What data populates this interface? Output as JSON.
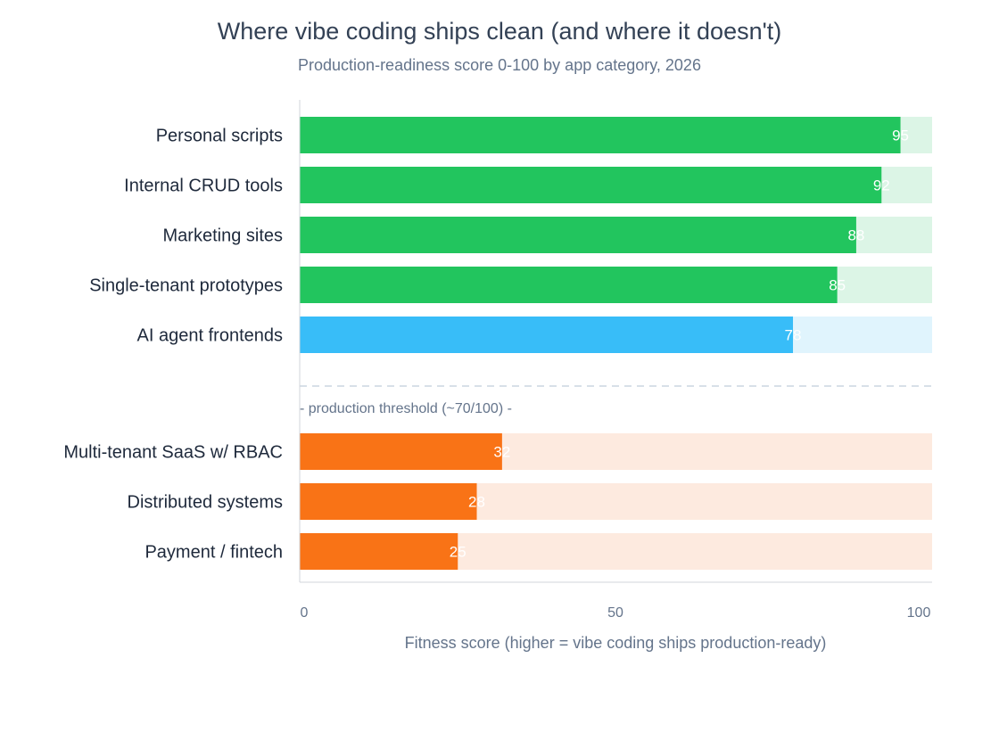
{
  "chart_data": {
    "type": "bar",
    "orientation": "horizontal",
    "title": "Where vibe coding ships clean (and where it doesn't)",
    "subtitle": "Production-readiness score 0-100 by app category, 2026",
    "xlabel": "Fitness score (higher = vibe coding ships production-ready)",
    "xlim": [
      0,
      100
    ],
    "xticks": [
      "0",
      "50",
      "100"
    ],
    "grid": false,
    "categories": [
      "Personal scripts",
      "Internal CRUD tools",
      "Marketing sites",
      "Single-tenant prototypes",
      "AI agent frontends",
      "Multi-tenant SaaS w/ RBAC",
      "Distributed systems",
      "Payment / fintech"
    ],
    "values": [
      95,
      92,
      88,
      85,
      78,
      32,
      28,
      25
    ],
    "threshold": {
      "value": 70,
      "label": "- production threshold (~70/100) -"
    },
    "colors": {
      "high": "#22c55e",
      "high_track": "#dcf5e6",
      "mid": "#38bdf8",
      "mid_track": "#e0f4fd",
      "low": "#f97316",
      "low_track": "#fdeadf"
    },
    "bar_colors": [
      "high",
      "high",
      "high",
      "high",
      "mid",
      "low",
      "low",
      "low"
    ]
  }
}
